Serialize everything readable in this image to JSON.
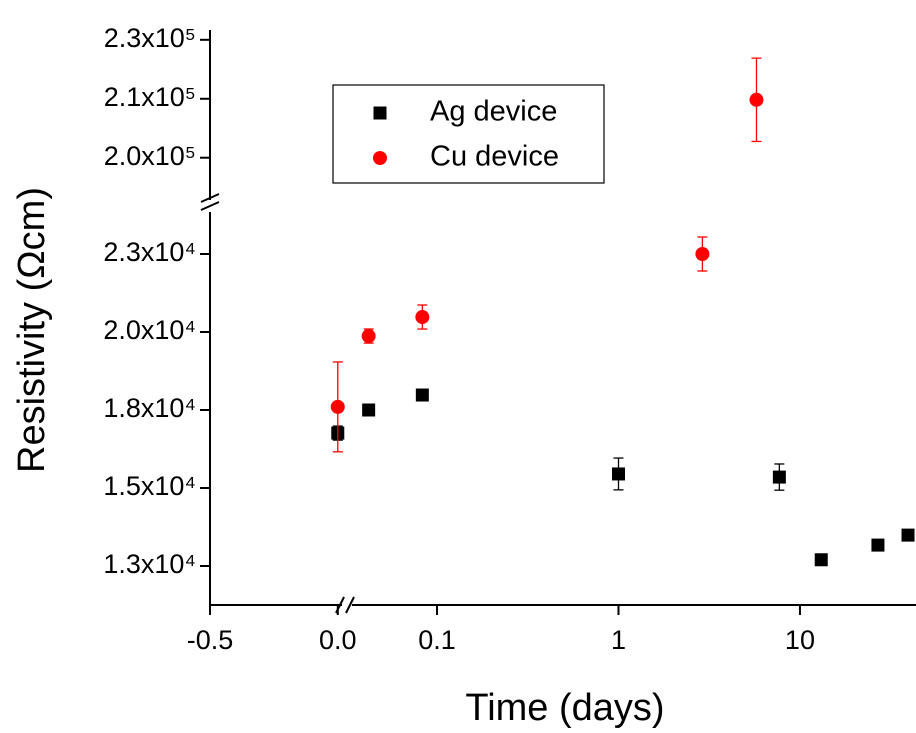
{
  "chart_data": {
    "type": "scatter",
    "xlabel": "Time (days)",
    "ylabel": "Resistivity (Ωcm)",
    "xscale": [
      "linear",
      "log"
    ],
    "xlim": [
      [
        -0.5,
        0.04
      ],
      [
        0.034,
        43.6
      ]
    ],
    "xticks": [
      -0.5,
      {
        "value": 0,
        "label": "0.0"
      },
      0.1,
      1,
      10
    ],
    "ylim": [
      [
        11250,
        23750
      ],
      [
        190000,
        232500
      ]
    ],
    "yticks": [
      {
        "value": 12500,
        "label": "1.3x10⁴"
      },
      {
        "value": 15000,
        "label": "1.5x10⁴"
      },
      {
        "value": 17500,
        "label": "1.8x10⁴"
      },
      {
        "value": 20000,
        "label": "2.0x10⁴"
      },
      {
        "value": 22500,
        "label": "2.3x10⁴"
      },
      {
        "value": 200000,
        "label": "2.0x10⁵"
      },
      {
        "value": 215000,
        "label": "2.1x10⁵"
      },
      {
        "value": 230000,
        "label": "2.3x10⁵"
      }
    ],
    "legend": "upper center",
    "series": [
      {
        "name": "Ag device",
        "color": "#000000",
        "marker": "square",
        "x": [
          0,
          0.042,
          0.083,
          1,
          7.7,
          13.1,
          26.9,
          39.4
        ],
        "values": [
          16760,
          17500,
          17980,
          15450,
          15350,
          12700,
          13170,
          13490
        ],
        "errors": [
          225,
          0,
          0,
          510,
          420,
          0,
          0,
          0
        ]
      },
      {
        "name": "Cu device",
        "color": "#ff0000",
        "marker": "circle",
        "x": [
          0,
          0.042,
          0.083,
          2.9,
          5.76
        ],
        "values": [
          17600,
          19870,
          20480,
          22500,
          214740
        ],
        "errors": [
          1440,
          225,
          385,
          545,
          10600
        ]
      }
    ]
  }
}
